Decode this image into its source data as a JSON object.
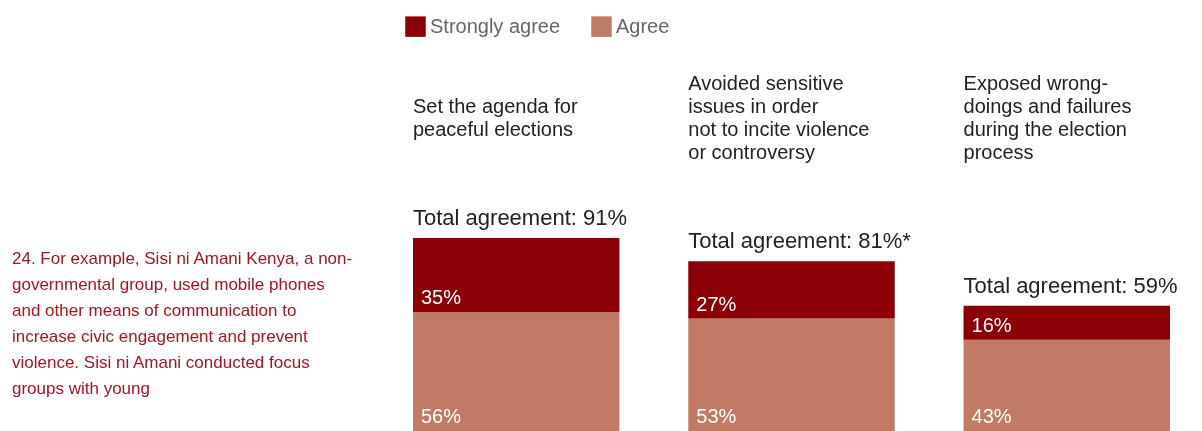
{
  "chart_data": {
    "type": "bar",
    "stacked": true,
    "legend": "top",
    "categories": [
      "Set the agenda for\npeaceful elections",
      "Avoided sensitive\nissues in order\nnot to incite violence\nor controversy",
      "Exposed wrong-\ndoings and failures\nduring the election\nprocess"
    ],
    "series": [
      {
        "name": "Agree",
        "color": "#c17a66",
        "values": [
          56,
          53,
          43
        ],
        "value_labels": [
          "56%",
          "53%",
          "43%"
        ]
      },
      {
        "name": "Strongly agree",
        "color": "#8b0007",
        "values": [
          35,
          27,
          16
        ],
        "value_labels": [
          "35%",
          "27%",
          "16%"
        ]
      }
    ],
    "totals": [
      "Total agreement: 91%",
      "Total agreement: 81%*",
      "Total agreement: 59%"
    ],
    "annotations": [
      "24. For example, Sisi ni Amani Kenya, a non-governmental group, used mobile phones and other means of communication to increase civic engagement and prevent violence. Sisi ni Amani conducted focus groups with young"
    ]
  }
}
